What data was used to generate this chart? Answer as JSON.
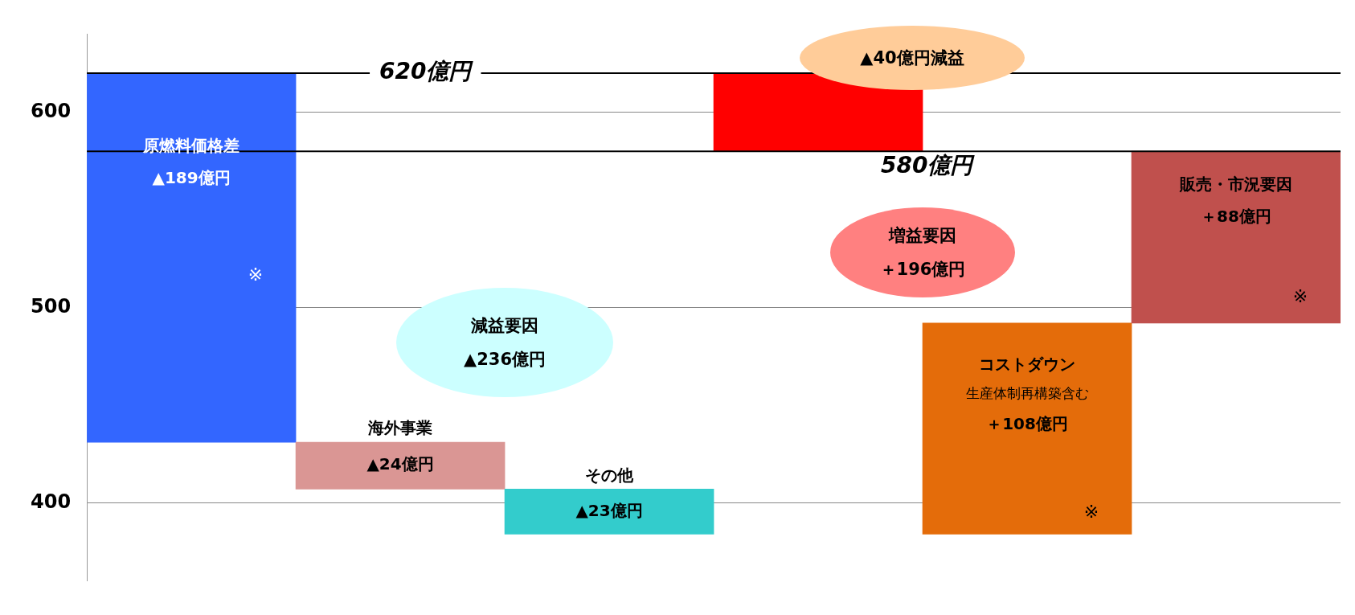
{
  "chart_data": {
    "type": "bar",
    "categories": [
      "原燃料価格差",
      "海外事業",
      "その他",
      null,
      "コストダウン",
      "販売・市況要因"
    ],
    "values": [
      -189,
      -24,
      -23,
      -40,
      108,
      88
    ],
    "base": [
      620,
      431,
      407,
      620,
      384,
      492
    ],
    "colors": [
      "#3366ff",
      "#da9694",
      "#33cccc",
      "#ff0000",
      "#e46c0a",
      "#c0504d"
    ],
    "value_labels": [
      "▲189億円",
      "▲24億円",
      "▲23億円",
      null,
      "＋108億円",
      "＋88億円"
    ],
    "ylim": [
      360,
      640
    ],
    "yticks": [
      400,
      500,
      600
    ],
    "grid": "y",
    "tick_labels": "y",
    "legend": false,
    "ref_lines": [
      {
        "axis": "y",
        "value": 620,
        "label": "620億円",
        "color": "#000000"
      },
      {
        "axis": "y",
        "value": 580,
        "label": "580億円",
        "color": "#000000"
      }
    ],
    "annotations": [
      "▲40億円減益",
      "減益要因",
      "▲236億円",
      "増益要因",
      "＋196億円",
      "生産体制再構築含む",
      "※",
      "※",
      "※"
    ]
  }
}
